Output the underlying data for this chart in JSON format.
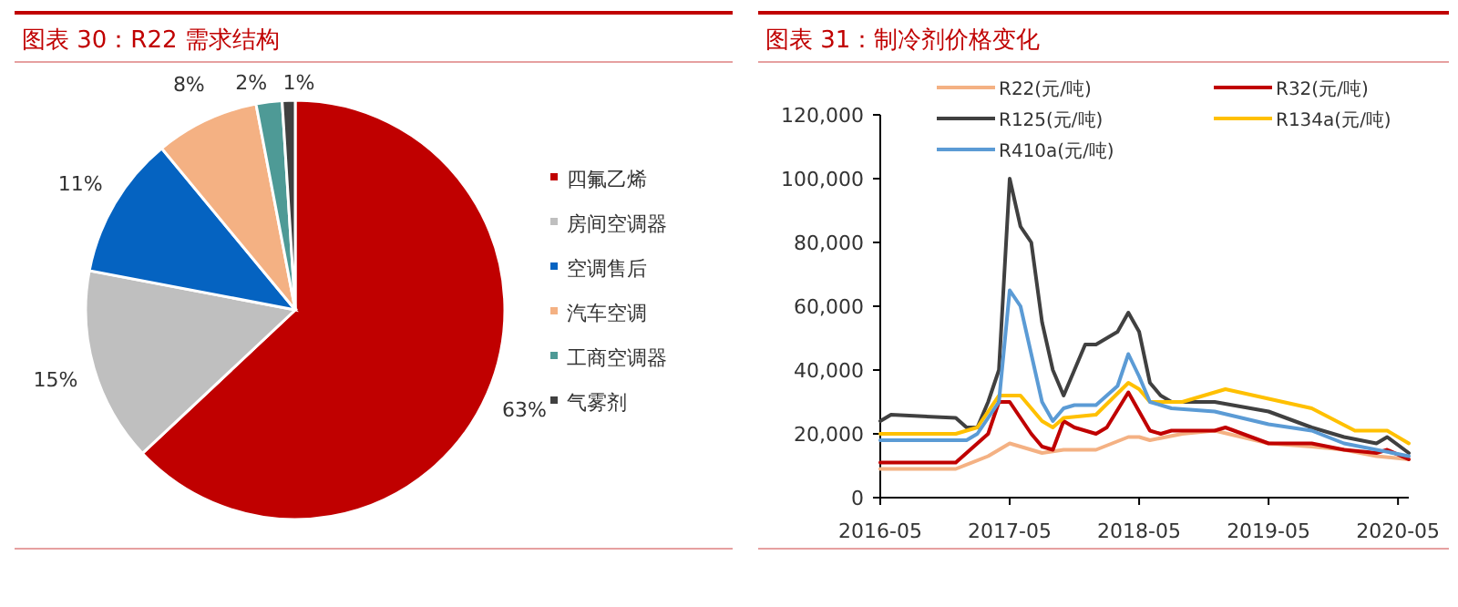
{
  "chart_data": [
    {
      "type": "pie",
      "title": "图表 30：R22 需求结构",
      "categories": [
        "四氟乙烯",
        "房间空调器",
        "空调售后",
        "汽车空调",
        "工商空调器",
        "气雾剂"
      ],
      "values": [
        63,
        15,
        11,
        8,
        2,
        1
      ],
      "colors": [
        "#c00000",
        "#bfbfbf",
        "#0563c1",
        "#f4b183",
        "#4e9a96",
        "#404040"
      ],
      "value_labels": [
        "63%",
        "15%",
        "11%",
        "8%",
        "2%",
        "1%"
      ],
      "legend": "right"
    },
    {
      "type": "line",
      "title": "图表 31：制冷剂价格变化",
      "legend": "top",
      "xlim": [
        "2016-05",
        "2020-06"
      ],
      "xticks": [
        "2016-05",
        "2017-05",
        "2018-05",
        "2019-05",
        "2020-05"
      ],
      "ylim": [
        0,
        120000
      ],
      "yticks": [
        0,
        {
          "value": 20000,
          "label": "20,000"
        },
        {
          "value": 40000,
          "label": "40,000"
        },
        {
          "value": 60000,
          "label": "60,000"
        },
        {
          "value": 80000,
          "label": "80,000"
        },
        {
          "value": 100000,
          "label": "100,000"
        },
        {
          "value": 120000,
          "label": "120,000"
        }
      ],
      "grid": false,
      "series": [
        {
          "name": "R22(元/吨)",
          "color": "#f4b183",
          "x": [
            "2016-05",
            "2016-12",
            "2017-03",
            "2017-05",
            "2017-07",
            "2017-08",
            "2017-10",
            "2018-01",
            "2018-04",
            "2018-05",
            "2018-06",
            "2018-09",
            "2018-12",
            "2019-05",
            "2019-09",
            "2019-12",
            "2020-03",
            "2020-06"
          ],
          "values": [
            9000,
            9000,
            13000,
            17000,
            15000,
            14000,
            15000,
            15000,
            19000,
            19000,
            18000,
            20000,
            21000,
            17000,
            16000,
            15000,
            13000,
            12000
          ]
        },
        {
          "name": "R32(元/吨)",
          "color": "#c00000",
          "x": [
            "2016-05",
            "2016-12",
            "2017-03",
            "2017-04",
            "2017-05",
            "2017-06",
            "2017-07",
            "2017-08",
            "2017-09",
            "2017-10",
            "2017-11",
            "2018-01",
            "2018-02",
            "2018-04",
            "2018-05",
            "2018-06",
            "2018-07",
            "2018-08",
            "2018-12",
            "2019-01",
            "2019-05",
            "2019-09",
            "2019-12",
            "2020-03",
            "2020-04",
            "2020-06"
          ],
          "values": [
            11000,
            11000,
            20000,
            30000,
            30000,
            25000,
            20000,
            16000,
            15000,
            24000,
            22000,
            20000,
            22000,
            33000,
            27000,
            21000,
            20000,
            21000,
            21000,
            22000,
            17000,
            17000,
            15000,
            14000,
            15000,
            12000
          ]
        },
        {
          "name": "R125(元/吨)",
          "color": "#404040",
          "x": [
            "2016-05",
            "2016-06",
            "2016-12",
            "2017-01",
            "2017-02",
            "2017-03",
            "2017-04",
            "2017-05",
            "2017-06",
            "2017-07",
            "2017-08",
            "2017-09",
            "2017-10",
            "2017-11",
            "2017-12",
            "2018-01",
            "2018-02",
            "2018-03",
            "2018-04",
            "2018-05",
            "2018-06",
            "2018-07",
            "2018-08",
            "2018-12",
            "2019-05",
            "2019-09",
            "2019-12",
            "2020-03",
            "2020-04",
            "2020-06"
          ],
          "values": [
            24000,
            26000,
            25000,
            22000,
            22000,
            30000,
            40000,
            100000,
            85000,
            80000,
            55000,
            40000,
            32000,
            40000,
            48000,
            48000,
            50000,
            52000,
            58000,
            52000,
            36000,
            32000,
            30000,
            30000,
            27000,
            22000,
            19000,
            17000,
            19000,
            14000
          ]
        },
        {
          "name": "R134a(元/吨)",
          "color": "#ffc000",
          "x": [
            "2016-05",
            "2016-12",
            "2017-02",
            "2017-04",
            "2017-05",
            "2017-06",
            "2017-07",
            "2017-08",
            "2017-09",
            "2017-10",
            "2018-01",
            "2018-04",
            "2018-05",
            "2018-06",
            "2018-09",
            "2018-12",
            "2019-01",
            "2019-05",
            "2019-09",
            "2020-01",
            "2020-04",
            "2020-06"
          ],
          "values": [
            20000,
            20000,
            22000,
            32000,
            32000,
            32000,
            28000,
            24000,
            22000,
            25000,
            26000,
            36000,
            34000,
            30000,
            30000,
            33000,
            34000,
            31000,
            28000,
            21000,
            21000,
            17000
          ]
        },
        {
          "name": "R410a(元/吨)",
          "color": "#5b9bd5",
          "x": [
            "2016-05",
            "2017-01",
            "2017-02",
            "2017-03",
            "2017-04",
            "2017-05",
            "2017-06",
            "2017-07",
            "2017-08",
            "2017-09",
            "2017-10",
            "2017-11",
            "2018-01",
            "2018-03",
            "2018-04",
            "2018-05",
            "2018-06",
            "2018-08",
            "2018-12",
            "2019-05",
            "2019-09",
            "2019-12",
            "2020-06"
          ],
          "values": [
            18000,
            18000,
            20000,
            25000,
            30000,
            65000,
            60000,
            45000,
            30000,
            24000,
            28000,
            29000,
            29000,
            35000,
            45000,
            38000,
            30000,
            28000,
            27000,
            23000,
            21000,
            17000,
            13000
          ]
        }
      ]
    }
  ]
}
